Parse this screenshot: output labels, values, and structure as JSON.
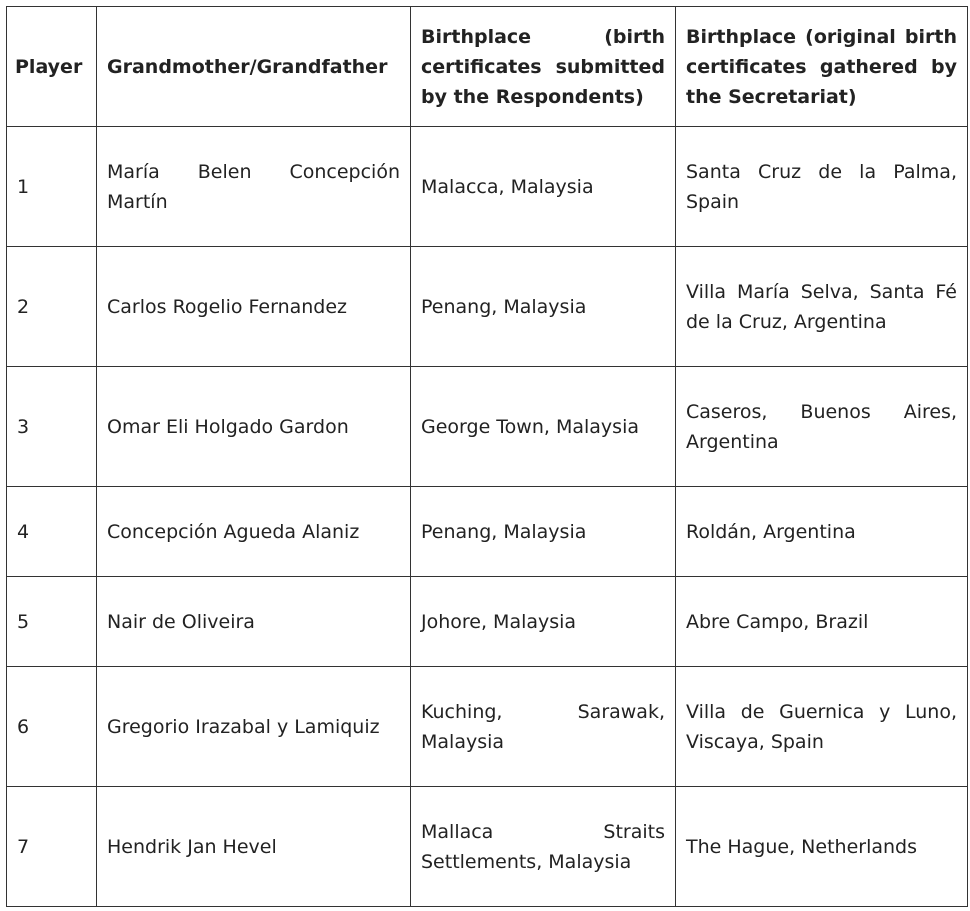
{
  "table": {
    "headers": [
      "Player",
      "Grandmother/Grandfather",
      "Birthplace (birth certificates submitted by the Respondents)",
      "Birthplace (original birth certificates gathered by the Secretariat)"
    ],
    "rows": [
      [
        "1",
        "María Belen Concepción Martín",
        "Malacca, Malaysia",
        "Santa Cruz de la Palma, Spain"
      ],
      [
        "2",
        "Carlos Rogelio Fernandez",
        "Penang, Malaysia",
        "Villa María Selva, Santa Fé de la Cruz, Argentina"
      ],
      [
        "3",
        "Omar Eli Holgado Gardon",
        "George Town, Malaysia",
        "Caseros, Buenos Aires, Argentina"
      ],
      [
        "4",
        "Concepción Agueda Alaniz",
        "Penang, Malaysia",
        "Roldán, Argentina"
      ],
      [
        "5",
        "Nair de Oliveira",
        "Johore, Malaysia",
        "Abre Campo, Brazil"
      ],
      [
        "6",
        "Gregorio Irazabal y Lamiquiz",
        "Kuching, Sarawak, Malaysia",
        "Villa de Guernica y Luno, Viscaya, Spain"
      ],
      [
        "7",
        "Hendrik Jan Hevel",
        "Mallaca Straits Settlements, Malaysia",
        "The Hague, Netherlands"
      ]
    ]
  }
}
